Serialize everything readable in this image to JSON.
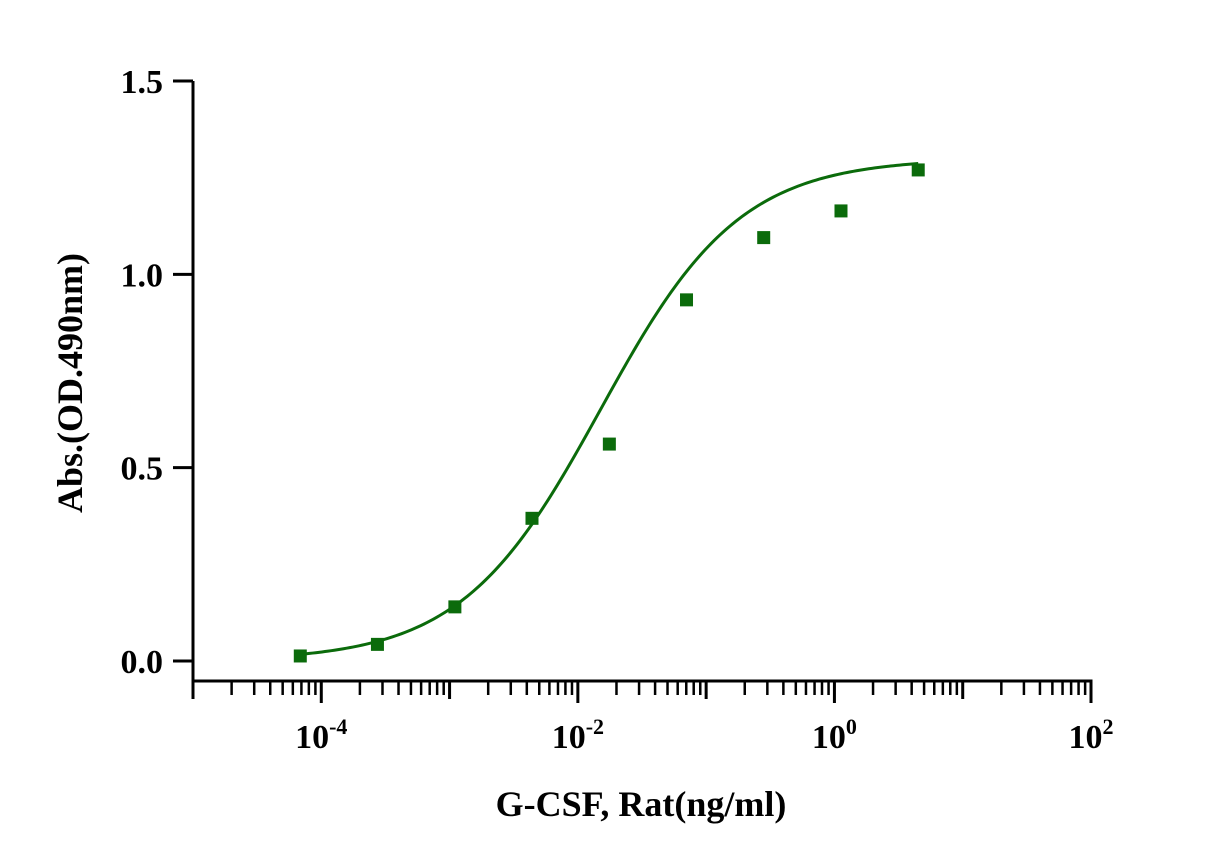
{
  "chart_data": {
    "type": "scatter",
    "title": "",
    "xlabel": "G-CSF, Rat(ng/ml)",
    "ylabel": "Abs.(OD.490nm)",
    "x_scale": "log10",
    "xlim": [
      1e-05,
      100
    ],
    "ylim": [
      0,
      1.5
    ],
    "x_ticks": [
      {
        "value": 0.0001,
        "base": "10",
        "exp": "-4"
      },
      {
        "value": 0.01,
        "base": "10",
        "exp": "-2"
      },
      {
        "value": 1,
        "base": "10",
        "exp": "0"
      },
      {
        "value": 100,
        "base": "10",
        "exp": "2"
      }
    ],
    "y_ticks": [
      {
        "value": 0.0,
        "label": "0.0"
      },
      {
        "value": 0.5,
        "label": "0.5"
      },
      {
        "value": 1.0,
        "label": "1.0"
      },
      {
        "value": 1.5,
        "label": "1.5"
      }
    ],
    "grid": false,
    "legend": "none",
    "color": "#0b6b0b",
    "series": [
      {
        "marker": "square",
        "x": [
          6.86e-05,
          0.000274,
          0.0011,
          0.00439,
          0.0176,
          0.0703,
          0.281,
          1.125,
          4.5
        ],
        "y": [
          0.013,
          0.043,
          0.14,
          0.369,
          0.561,
          0.934,
          1.095,
          1.164,
          1.27
        ]
      }
    ],
    "fit": {
      "type": "4PL",
      "bottom": 0.0,
      "top": 1.3,
      "ec50": 0.015,
      "hill": 0.8,
      "x_range": [
        6.86e-05,
        4.5
      ]
    }
  }
}
